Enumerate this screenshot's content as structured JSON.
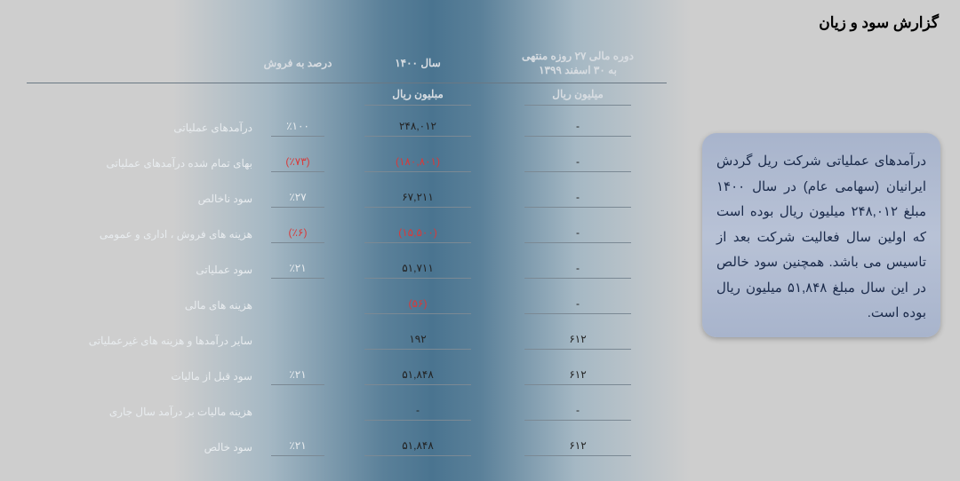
{
  "title": "گزارش سود و زیان",
  "info_box": "درآمدهای عملیاتی شرکت ریل گردش ایرانیان (سهامی عام) در سال ۱۴۰۰ مبلغ ۲۴۸,۰۱۲ میلیون ریال بوده است که اولین سال فعالیت شرکت بعد از تاسیس می باشد. همچنین سود خالص در این سال مبلغ ۵۱,۸۴۸ میلیون ریال بوده است.",
  "headers": {
    "pct": "درصد به فروش",
    "y1": "سال ۱۴۰۰",
    "y2_line1": "دوره مالی ۲۷ روزه منتهی",
    "y2_line2": "به ۳۰ اسفند ۱۳۹۹",
    "unit1": "مبلیون ریال",
    "unit2": "میلیون ریال"
  },
  "rows": [
    {
      "label": "درآمدهای عملیاتی",
      "pct": "٪۱۰۰",
      "y1": "۲۴۸,۰۱۲",
      "y2": "-",
      "neg": false
    },
    {
      "label": "بهای تمام شده درآمدهای عملیاتی",
      "pct": "(٪۷۳)",
      "y1": "(۱۸۰,۸۰۱)",
      "y2": "-",
      "neg": true
    },
    {
      "label": "سود ناخالص",
      "pct": "٪۲۷",
      "y1": "۶۷,۲۱۱",
      "y2": "-",
      "neg": false
    },
    {
      "label": "هزینه های فروش ، اداری و عمومی",
      "pct": "(٪۶)",
      "y1": "(۱۵,۵۰۰)",
      "y2": "-",
      "neg": true
    },
    {
      "label": "سود عملیاتی",
      "pct": "٪۲۱",
      "y1": "۵۱,۷۱۱",
      "y2": "-",
      "neg": false
    },
    {
      "label": "هزینه های مالی",
      "pct": "",
      "y1": "(۵۶)",
      "y2": "-",
      "neg": true
    },
    {
      "label": "سایر درآمدها و هزینه های غیرعملیاتی",
      "pct": "",
      "y1": "۱۹۲",
      "y2": "۶۱۲",
      "neg": false
    },
    {
      "label": "سود قبل از مالیات",
      "pct": "٪۲۱",
      "y1": "۵۱,۸۴۸",
      "y2": "۶۱۲",
      "neg": false
    },
    {
      "label": "هزینه مالیات بر درآمد سال جاری",
      "pct": "",
      "y1": "-",
      "y2": "-",
      "neg": false
    },
    {
      "label": "سود خالص",
      "pct": "٪۲۱",
      "y1": "۵۱,۸۴۸",
      "y2": "۶۱۲",
      "neg": false
    }
  ],
  "colors": {
    "negative": "#d83a3a",
    "text_light": "#e8ecef",
    "text_dark": "#222"
  }
}
